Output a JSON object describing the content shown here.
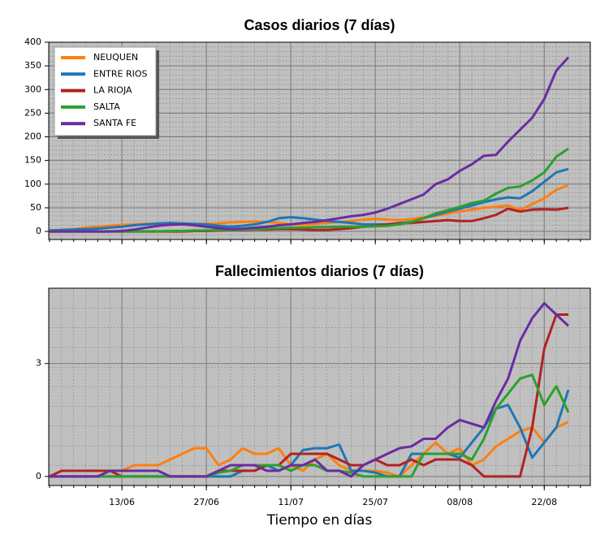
{
  "chart_data": [
    {
      "type": "line",
      "title": "Casos diarios (7 días)",
      "legend": "upper left",
      "grid": true,
      "xtick_labels": false,
      "x": [
        "01/06",
        "03/06",
        "05/06",
        "07/06",
        "09/06",
        "11/06",
        "13/06",
        "15/06",
        "17/06",
        "19/06",
        "21/06",
        "23/06",
        "25/06",
        "27/06",
        "29/06",
        "01/07",
        "03/07",
        "05/07",
        "07/07",
        "09/07",
        "11/07",
        "13/07",
        "15/07",
        "17/07",
        "19/07",
        "21/07",
        "23/07",
        "25/07",
        "27/07",
        "29/07",
        "31/07",
        "02/08",
        "04/08",
        "06/08",
        "08/08",
        "10/08",
        "12/08",
        "14/08",
        "16/08",
        "18/08",
        "20/08",
        "22/08",
        "24/08",
        "26/08"
      ],
      "xticks": [
        "13/06",
        "27/06",
        "11/07",
        "25/07",
        "08/08",
        "22/08"
      ],
      "ylim": [
        -17,
        400
      ],
      "yticks": [
        0,
        50,
        100,
        150,
        200,
        250,
        300,
        350,
        400
      ],
      "series": [
        {
          "name": "NEUQUEN",
          "color": "#ff7f0e",
          "values": [
            2,
            3,
            5,
            8,
            10,
            12,
            14,
            15,
            16,
            17,
            18,
            17,
            16,
            16,
            17,
            19,
            20,
            21,
            20,
            18,
            15,
            14,
            16,
            18,
            20,
            22,
            25,
            27,
            25,
            24,
            26,
            30,
            33,
            38,
            42,
            46,
            50,
            52,
            55,
            45,
            58,
            70,
            88,
            98
          ]
        },
        {
          "name": "ENTRE RIOS",
          "color": "#1f77b4",
          "values": [
            2,
            3,
            4,
            5,
            6,
            8,
            10,
            13,
            15,
            17,
            18,
            17,
            16,
            15,
            12,
            10,
            12,
            15,
            20,
            28,
            30,
            28,
            25,
            22,
            20,
            18,
            15,
            15,
            15,
            18,
            20,
            28,
            35,
            42,
            48,
            55,
            62,
            68,
            72,
            70,
            85,
            105,
            125,
            132
          ]
        },
        {
          "name": "LA RIOJA",
          "color": "#b22222",
          "values": [
            0,
            0,
            0,
            0,
            0,
            0,
            0,
            0,
            0,
            0,
            0,
            0,
            1,
            1,
            2,
            3,
            3,
            4,
            4,
            5,
            5,
            4,
            3,
            3,
            5,
            7,
            10,
            12,
            15,
            17,
            18,
            20,
            22,
            24,
            22,
            22,
            28,
            35,
            48,
            42,
            46,
            47,
            46,
            50
          ]
        },
        {
          "name": "SALTA",
          "color": "#2ca02c",
          "values": [
            0,
            0,
            0,
            0,
            0,
            0,
            0,
            0,
            0,
            0,
            1,
            1,
            2,
            2,
            3,
            3,
            4,
            5,
            6,
            7,
            8,
            8,
            9,
            9,
            10,
            10,
            10,
            11,
            12,
            15,
            20,
            28,
            38,
            45,
            52,
            60,
            65,
            80,
            92,
            95,
            108,
            125,
            158,
            175
          ]
        },
        {
          "name": "SANTA FE",
          "color": "#6a2ca0",
          "values": [
            0,
            0,
            0,
            0,
            0,
            0,
            1,
            4,
            8,
            12,
            14,
            15,
            13,
            10,
            7,
            5,
            6,
            8,
            10,
            13,
            15,
            18,
            20,
            24,
            28,
            32,
            35,
            40,
            48,
            58,
            68,
            78,
            100,
            110,
            128,
            142,
            160,
            162,
            190,
            215,
            240,
            280,
            340,
            368
          ]
        }
      ]
    },
    {
      "type": "line",
      "title": "Fallecimientos diarios (7 días)",
      "xlabel": "Tiempo en días",
      "grid": true,
      "xtick_labels": true,
      "x": [
        "01/06",
        "03/06",
        "05/06",
        "07/06",
        "09/06",
        "11/06",
        "13/06",
        "15/06",
        "17/06",
        "19/06",
        "21/06",
        "23/06",
        "25/06",
        "27/06",
        "29/06",
        "01/07",
        "03/07",
        "05/07",
        "07/07",
        "09/07",
        "11/07",
        "13/07",
        "15/07",
        "17/07",
        "19/07",
        "21/07",
        "23/07",
        "25/07",
        "27/07",
        "29/07",
        "31/07",
        "02/08",
        "04/08",
        "06/08",
        "08/08",
        "10/08",
        "12/08",
        "14/08",
        "16/08",
        "18/08",
        "20/08",
        "22/08",
        "24/08",
        "26/08"
      ],
      "xticks": [
        "13/06",
        "27/06",
        "11/07",
        "25/07",
        "08/08",
        "22/08"
      ],
      "ylim": [
        -0.24,
        5
      ],
      "yticks": [
        0,
        3
      ],
      "series": [
        {
          "name": "NEUQUEN",
          "color": "#ff7f0e",
          "values": [
            0,
            0,
            0,
            0,
            0,
            0.15,
            0.15,
            0.3,
            0.3,
            0.3,
            0.45,
            0.6,
            0.75,
            0.75,
            0.3,
            0.45,
            0.75,
            0.6,
            0.6,
            0.75,
            0.3,
            0.15,
            0.45,
            0.6,
            0.3,
            0.15,
            0.15,
            0.15,
            0.1,
            0,
            0.3,
            0.6,
            0.9,
            0.6,
            0.75,
            0.3,
            0.45,
            0.8,
            1.0,
            1.2,
            1.3,
            0.9,
            1.3,
            1.45
          ]
        },
        {
          "name": "ENTRE RIOS",
          "color": "#1f77b4",
          "values": [
            0,
            0,
            0,
            0,
            0,
            0,
            0,
            0,
            0,
            0,
            0,
            0,
            0,
            0,
            0,
            0,
            0.15,
            0.15,
            0.3,
            0.15,
            0.3,
            0.7,
            0.75,
            0.75,
            0.85,
            0.15,
            0.15,
            0.1,
            0,
            0,
            0.6,
            0.6,
            0.6,
            0.6,
            0.5,
            0.9,
            1.3,
            1.8,
            1.9,
            1.3,
            0.5,
            0.9,
            1.3,
            2.3
          ]
        },
        {
          "name": "LA RIOJA",
          "color": "#b22222",
          "values": [
            0,
            0.15,
            0.15,
            0.15,
            0.15,
            0.15,
            0,
            0,
            0,
            0,
            0,
            0,
            0,
            0,
            0.15,
            0.15,
            0.15,
            0.15,
            0.3,
            0.3,
            0.6,
            0.6,
            0.6,
            0.6,
            0.45,
            0.3,
            0.3,
            0.45,
            0.3,
            0.3,
            0.45,
            0.3,
            0.45,
            0.45,
            0.45,
            0.3,
            0,
            0,
            0,
            0,
            1.3,
            3.4,
            4.3,
            4.3
          ]
        },
        {
          "name": "SALTA",
          "color": "#2ca02c",
          "values": [
            0,
            0,
            0,
            0,
            0,
            0,
            0,
            0,
            0,
            0,
            0,
            0,
            0,
            0,
            0.1,
            0.15,
            0.3,
            0.3,
            0.3,
            0.3,
            0.15,
            0.3,
            0.3,
            0.15,
            0.15,
            0.1,
            0,
            0,
            0,
            0,
            0,
            0.6,
            0.6,
            0.6,
            0.6,
            0.45,
            1.0,
            1.8,
            2.2,
            2.6,
            2.7,
            1.9,
            2.4,
            1.7
          ]
        },
        {
          "name": "SANTA FE",
          "color": "#6a2ca0",
          "values": [
            0,
            0,
            0,
            0,
            0,
            0.15,
            0.15,
            0.15,
            0.15,
            0.15,
            0,
            0,
            0,
            0,
            0.15,
            0.3,
            0.3,
            0.3,
            0.15,
            0.15,
            0.3,
            0.3,
            0.45,
            0.15,
            0.15,
            0,
            0.3,
            0.45,
            0.6,
            0.75,
            0.8,
            1.0,
            1.0,
            1.3,
            1.5,
            1.4,
            1.3,
            2.0,
            2.6,
            3.6,
            4.2,
            4.6,
            4.3,
            4.0
          ]
        }
      ]
    }
  ]
}
